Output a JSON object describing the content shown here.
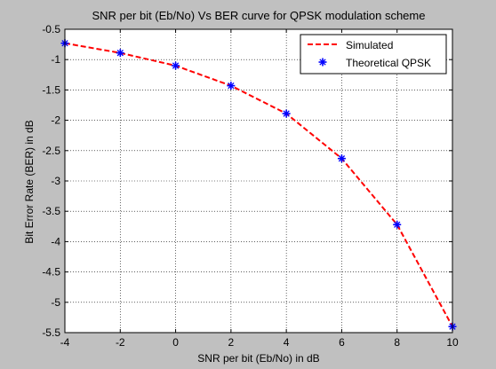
{
  "chart_data": {
    "type": "line",
    "title": "SNR per bit (Eb/No) Vs BER curve for QPSK modulation scheme",
    "xlabel": "SNR per bit (Eb/No) in dB",
    "ylabel": "Bit Error Rate (BER) in dB",
    "xlim": [
      -4,
      10
    ],
    "ylim": [
      -5.5,
      -0.5
    ],
    "x_ticks": [
      "-4",
      "-2",
      "0",
      "2",
      "4",
      "6",
      "8",
      "10"
    ],
    "y_ticks": [
      "-0.5",
      "-1",
      "-1.5",
      "-2",
      "-2.5",
      "-3",
      "-3.5",
      "-4",
      "-4.5",
      "-5",
      "-5.5"
    ],
    "grid": true,
    "legend_position": "top-right",
    "x": [
      -4,
      -2,
      0,
      2,
      4,
      6,
      8,
      10
    ],
    "series": [
      {
        "name": "Simulated",
        "style": "dashed-line",
        "color": "#ff0000",
        "values": [
          -0.73,
          -0.89,
          -1.1,
          -1.43,
          -1.89,
          -2.63,
          -3.72,
          -5.4
        ]
      },
      {
        "name": "Theoretical QPSK",
        "style": "star-markers",
        "color": "#0000ff",
        "values": [
          -0.73,
          -0.89,
          -1.1,
          -1.43,
          -1.89,
          -2.63,
          -3.72,
          -5.4
        ]
      }
    ]
  }
}
